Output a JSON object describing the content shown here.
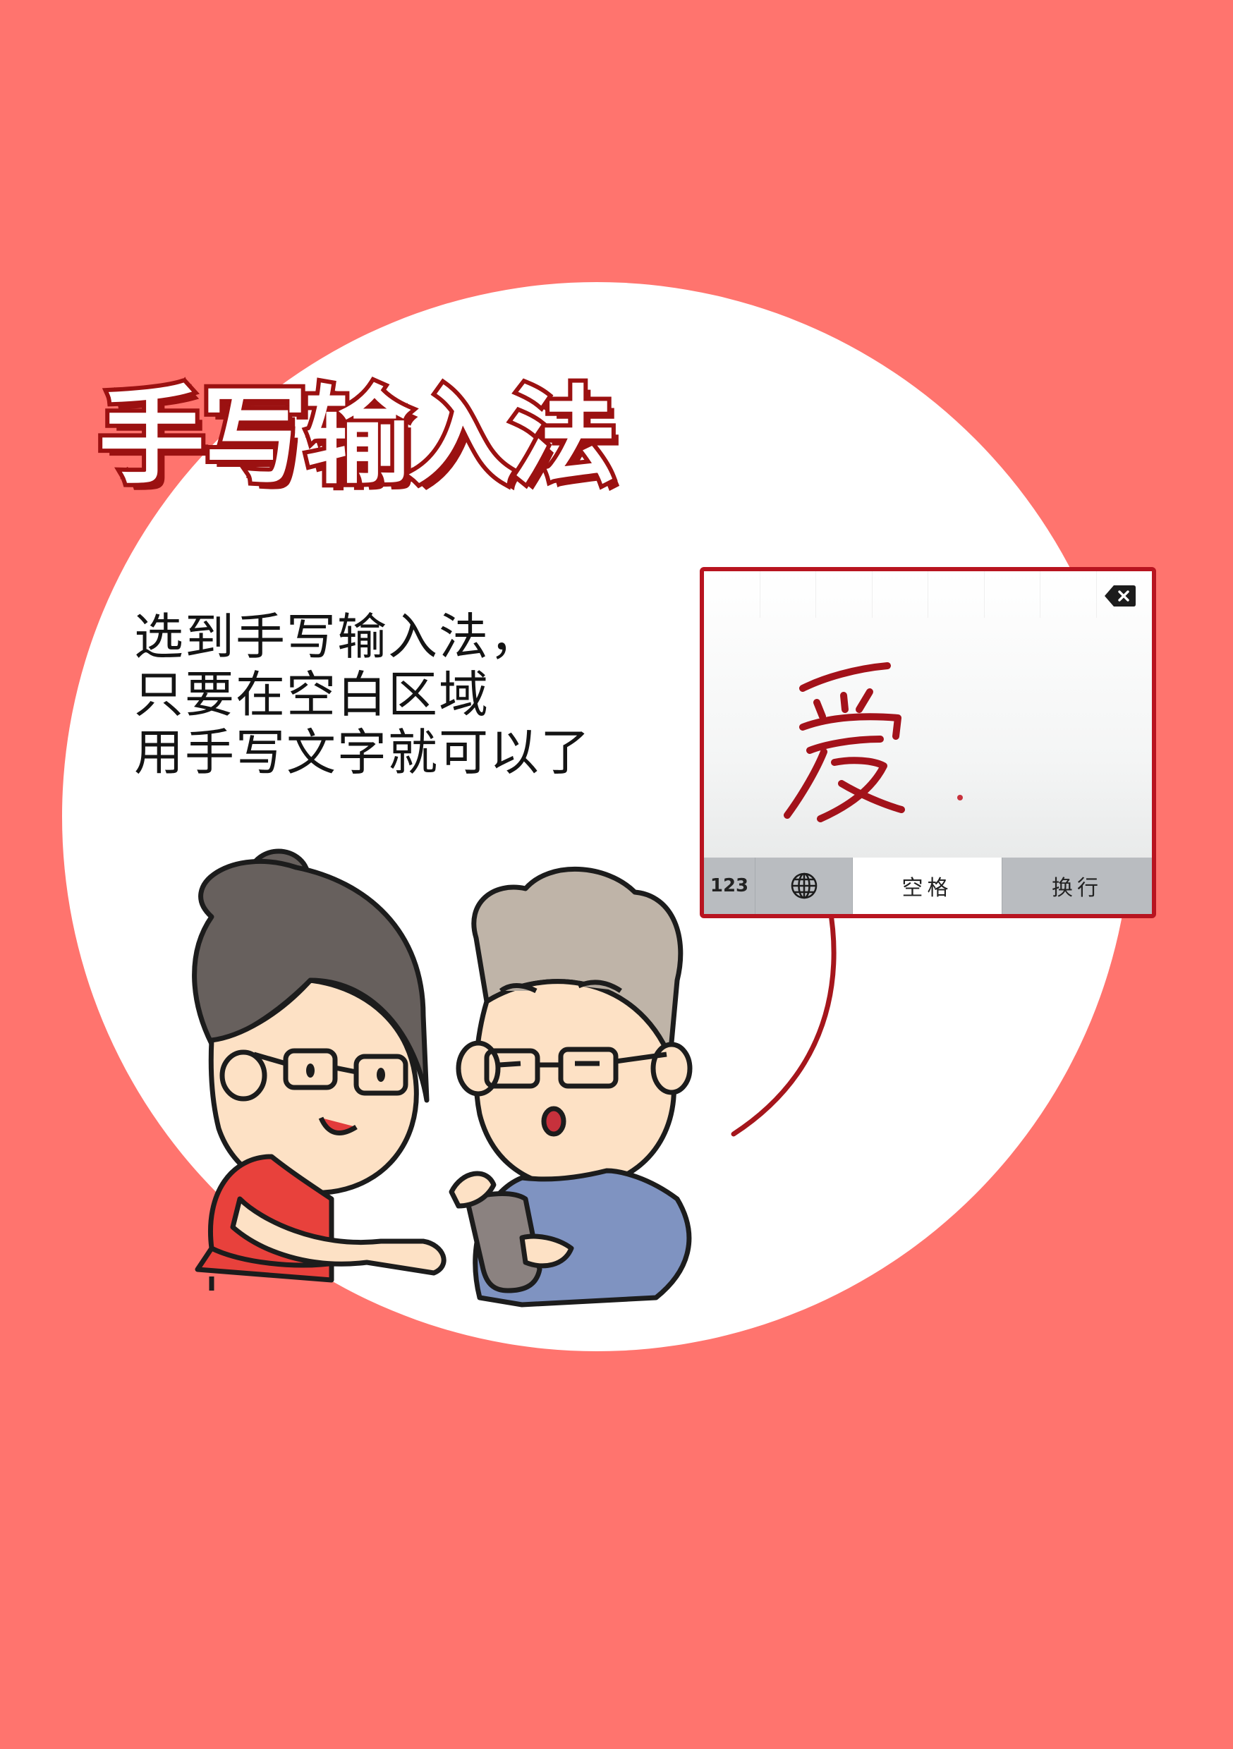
{
  "page": {
    "title": "手写输入法",
    "description_lines": [
      "选到手写输入法，",
      "只要在空白区域",
      "用手写文字就可以了"
    ]
  },
  "keyboard": {
    "handwritten_char": "爱",
    "keys": {
      "numbers": "123",
      "globe_icon": "globe-icon",
      "space": "空格",
      "return": "换行"
    },
    "delete_icon": "backspace-icon"
  },
  "colors": {
    "background": "#ff746e",
    "bubble": "#ffffff",
    "accent": "#9b1111",
    "keyboard_border": "#b81420"
  }
}
